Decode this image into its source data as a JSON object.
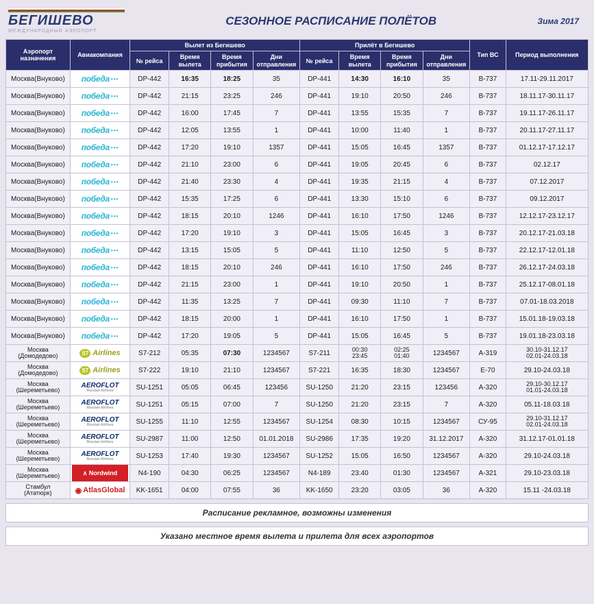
{
  "header": {
    "logo_text": "БЕГИШЕВО",
    "logo_sub": "МЕЖДУНАРОДНЫЙ АЭРОПОРТ",
    "title": "СЕЗОННОЕ РАСПИСАНИЕ ПОЛЁТОВ",
    "season": "Зима 2017"
  },
  "columns": {
    "dest": "Аэропорт назначения",
    "airline": "Авиакомпания",
    "group_dep": "Вылет из Бегишево",
    "group_arr": "Прилёт в Бегишево",
    "flight": "№ рейса",
    "dep_time": "Время вылета",
    "arr_time": "Время прибытия",
    "days": "Дни отправления",
    "ac": "Тип ВС",
    "period": "Период выполнения"
  },
  "rows": [
    {
      "dest": "Москва(Внуково)",
      "airline": "pobeda",
      "of": "DP-442",
      "ot1": "16:35",
      "ot2": "18:25",
      "od": "35",
      "if": "DP-441",
      "it1": "14:30",
      "it2": "16:10",
      "id": "35",
      "ac": "B-737",
      "per": "17.11-29.11.2017",
      "b1": true,
      "b2": true,
      "bi1": true,
      "bi2": true
    },
    {
      "dest": "Москва(Внуково)",
      "airline": "pobeda",
      "of": "DP-442",
      "ot1": "21:15",
      "ot2": "23:25",
      "od": "246",
      "if": "DP-441",
      "it1": "19:10",
      "it2": "20:50",
      "id": "246",
      "ac": "B-737",
      "per": "18.11.17-30.11.17"
    },
    {
      "dest": "Москва(Внуково)",
      "airline": "pobeda",
      "of": "DP-442",
      "ot1": "16:00",
      "ot2": "17:45",
      "od": "7",
      "if": "DP-441",
      "it1": "13:55",
      "it2": "15:35",
      "id": "7",
      "ac": "B-737",
      "per": "19.11.17-26.11.17"
    },
    {
      "dest": "Москва(Внуково)",
      "airline": "pobeda",
      "of": "DP-442",
      "ot1": "12:05",
      "ot2": "13:55",
      "od": "1",
      "if": "DP-441",
      "it1": "10:00",
      "it2": "11:40",
      "id": "1",
      "ac": "B-737",
      "per": "20.11.17-27.11.17"
    },
    {
      "dest": "Москва(Внуково)",
      "airline": "pobeda",
      "of": "DP-442",
      "ot1": "17:20",
      "ot2": "19:10",
      "od": "1357",
      "if": "DP-441",
      "it1": "15:05",
      "it2": "16:45",
      "id": "1357",
      "ac": "B-737",
      "per": "01.12.17-17.12.17"
    },
    {
      "dest": "Москва(Внуково)",
      "airline": "pobeda",
      "of": "DP-442",
      "ot1": "21:10",
      "ot2": "23:00",
      "od": "6",
      "if": "DP-441",
      "it1": "19:05",
      "it2": "20:45",
      "id": "6",
      "ac": "B-737",
      "per": "02.12.17"
    },
    {
      "dest": "Москва(Внуково)",
      "airline": "pobeda",
      "of": "DP-442",
      "ot1": "21:40",
      "ot2": "23:30",
      "od": "4",
      "if": "DP-441",
      "it1": "19:35",
      "it2": "21:15",
      "id": "4",
      "ac": "B-737",
      "per": "07.12.2017"
    },
    {
      "dest": "Москва(Внуково)",
      "airline": "pobeda",
      "of": "DP-442",
      "ot1": "15:35",
      "ot2": "17:25",
      "od": "6",
      "if": "DP-441",
      "it1": "13:30",
      "it2": "15:10",
      "id": "6",
      "ac": "B-737",
      "per": "09.12.2017"
    },
    {
      "dest": "Москва(Внуково)",
      "airline": "pobeda",
      "of": "DP-442",
      "ot1": "18:15",
      "ot2": "20:10",
      "od": "1246",
      "if": "DP-441",
      "it1": "16:10",
      "it2": "17:50",
      "id": "1246",
      "ac": "B-737",
      "per": "12.12.17-23.12.17"
    },
    {
      "dest": "Москва(Внуково)",
      "airline": "pobeda",
      "of": "DP-442",
      "ot1": "17:20",
      "ot2": "19:10",
      "od": "3",
      "if": "DP-441",
      "it1": "15:05",
      "it2": "16:45",
      "id": "3",
      "ac": "B-737",
      "per": "20.12.17-21.03.18"
    },
    {
      "dest": "Москва(Внуково)",
      "airline": "pobeda",
      "of": "DP-442",
      "ot1": "13:15",
      "ot2": "15:05",
      "od": "5",
      "if": "DP-441",
      "it1": "11:10",
      "it2": "12:50",
      "id": "5",
      "ac": "B-737",
      "per": "22.12.17-12.01.18"
    },
    {
      "dest": "Москва(Внуково)",
      "airline": "pobeda",
      "of": "DP-442",
      "ot1": "18:15",
      "ot2": "20:10",
      "od": "246",
      "if": "DP-441",
      "it1": "16:10",
      "it2": "17:50",
      "id": "246",
      "ac": "B-737",
      "per": "26.12.17-24.03.18"
    },
    {
      "dest": "Москва(Внуково)",
      "airline": "pobeda",
      "of": "DP-442",
      "ot1": "21:15",
      "ot2": "23:00",
      "od": "1",
      "if": "DP-441",
      "it1": "19:10",
      "it2": "20:50",
      "id": "1",
      "ac": "B-737",
      "per": "25.12.17-08.01.18"
    },
    {
      "dest": "Москва(Внуково)",
      "airline": "pobeda",
      "of": "DP-442",
      "ot1": "11:35",
      "ot2": "13:25",
      "od": "7",
      "if": "DP-441",
      "it1": "09:30",
      "it2": "11:10",
      "id": "7",
      "ac": "B-737",
      "per": "07.01-18.03.2018"
    },
    {
      "dest": "Москва(Внуково)",
      "airline": "pobeda",
      "of": "DP-442",
      "ot1": "18:15",
      "ot2": "20:00",
      "od": "1",
      "if": "DP-441",
      "it1": "16:10",
      "it2": "17:50",
      "id": "1",
      "ac": "B-737",
      "per": "15.01.18-19.03.18"
    },
    {
      "dest": "Москва(Внуково)",
      "airline": "pobeda",
      "of": "DP-442",
      "ot1": "17:20",
      "ot2": "19:05",
      "od": "5",
      "if": "DP-441",
      "it1": "15:05",
      "it2": "16:45",
      "id": "5",
      "ac": "B-737",
      "per": "19.01.18-23.03.18"
    },
    {
      "dest": "Москва (Домодедово)",
      "airline": "s7",
      "of": "S7-212",
      "ot1": "05:35",
      "ot2": "07:30",
      "od": "1234567",
      "if": "S7-211",
      "it1": "00:30 23:45",
      "it2": "02:25 01:40",
      "id": "1234567",
      "ac": "A-319",
      "per": "30.10-31.12.17 02.01-24.03.18",
      "b2": true
    },
    {
      "dest": "Москва (Домодедово)",
      "airline": "s7",
      "of": "S7-222",
      "ot1": "19:10",
      "ot2": "21:10",
      "od": "1234567",
      "if": "S7-221",
      "it1": "16:35",
      "it2": "18:30",
      "id": "1234567",
      "ac": "E-70",
      "per": "29.10-24.03.18"
    },
    {
      "dest": "Москва (Шереметьево)",
      "airline": "aeroflot",
      "of": "SU-1251",
      "ot1": "05:05",
      "ot2": "06:45",
      "od": "123456",
      "if": "SU-1250",
      "it1": "21:20",
      "it2": "23:15",
      "id": "123456",
      "ac": "A-320",
      "per": "29.10-30.12.17 01.01-24.03.18"
    },
    {
      "dest": "Москва (Шереметьево)",
      "airline": "aeroflot",
      "of": "SU-1251",
      "ot1": "05:15",
      "ot2": "07:00",
      "od": "7",
      "if": "SU-1250",
      "it1": "21:20",
      "it2": "23:15",
      "id": "7",
      "ac": "A-320",
      "per": "05.11-18.03.18"
    },
    {
      "dest": "Москва (Шереметьево)",
      "airline": "aeroflot",
      "of": "SU-1255",
      "ot1": "11:10",
      "ot2": "12:55",
      "od": "1234567",
      "if": "SU-1254",
      "it1": "08:30",
      "it2": "10:15",
      "id": "1234567",
      "ac": "СУ-95",
      "per": "29.10-31.12.17 02.01-24.03.18"
    },
    {
      "dest": "Москва (Шереметьево)",
      "airline": "aeroflot",
      "of": "SU-2987",
      "ot1": "11:00",
      "ot2": "12:50",
      "od": "01.01.2018",
      "if": "SU-2986",
      "it1": "17:35",
      "it2": "19:20",
      "id": "31.12.2017",
      "ac": "A-320",
      "per": "31.12.17-01.01.18"
    },
    {
      "dest": "Москва (Шереметьево)",
      "airline": "aeroflot",
      "of": "SU-1253",
      "ot1": "17:40",
      "ot2": "19:30",
      "od": "1234567",
      "if": "SU-1252",
      "it1": "15:05",
      "it2": "16:50",
      "id": "1234567",
      "ac": "A-320",
      "per": "29.10-24.03.18"
    },
    {
      "dest": "Москва (Шереметьево)",
      "airline": "nordwind",
      "of": "N4-190",
      "ot1": "04:30",
      "ot2": "06:25",
      "od": "1234567",
      "if": "N4-189",
      "it1": "23:40",
      "it2": "01:30",
      "id": "1234567",
      "ac": "A-321",
      "per": "29.10-23.03.18"
    },
    {
      "dest": "Стамбул (Ататюрк)",
      "airline": "atlasglobal",
      "of": "KK-1651",
      "ot1": "04:00",
      "ot2": "07:55",
      "od": "36",
      "if": "KK-1650",
      "it1": "23:20",
      "it2": "03:05",
      "id": "36",
      "ac": "A-320",
      "per": "15.11 -24.03.18"
    }
  ],
  "footnotes": {
    "line1": "Расписание рекламное, возможны изменения",
    "line2": "Указано местное время вылета и прилета для всех аэропортов"
  }
}
